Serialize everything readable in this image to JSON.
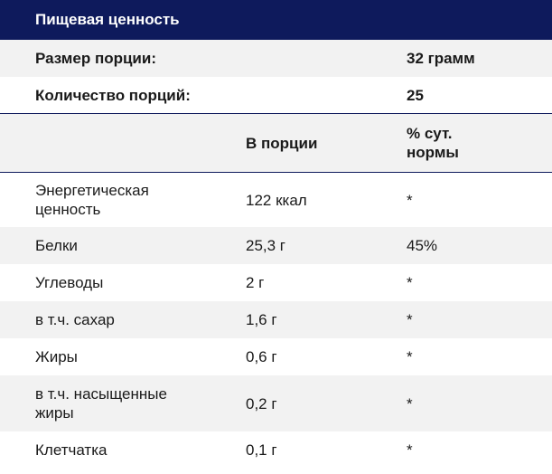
{
  "title": "Пищевая ценность",
  "serving_size": {
    "label": "Размер порции:",
    "value": "32 грамм"
  },
  "servings_count": {
    "label": "Количество порций:",
    "value": "25"
  },
  "columns": {
    "per_serving": "В порции",
    "daily_value_line1": "% сут.",
    "daily_value_line2": "нормы"
  },
  "rows": [
    {
      "name_line1": "Энергетическая",
      "name_line2": "ценность",
      "amount": "122 ккал",
      "dv": "*"
    },
    {
      "name_line1": "Белки",
      "name_line2": "",
      "amount": "25,3 г",
      "dv": "45%"
    },
    {
      "name_line1": "Углеводы",
      "name_line2": "",
      "amount": "2 г",
      "dv": "*"
    },
    {
      "name_line1": "в т.ч. сахар",
      "name_line2": "",
      "amount": "1,6 г",
      "dv": "*"
    },
    {
      "name_line1": "Жиры",
      "name_line2": "",
      "amount": "0,6 г",
      "dv": "*"
    },
    {
      "name_line1": "в т.ч. насыщенные",
      "name_line2": "жиры",
      "amount": "0,2 г",
      "dv": "*"
    },
    {
      "name_line1": "Клетчатка",
      "name_line2": "",
      "amount": "0,1 г",
      "dv": "*"
    }
  ]
}
